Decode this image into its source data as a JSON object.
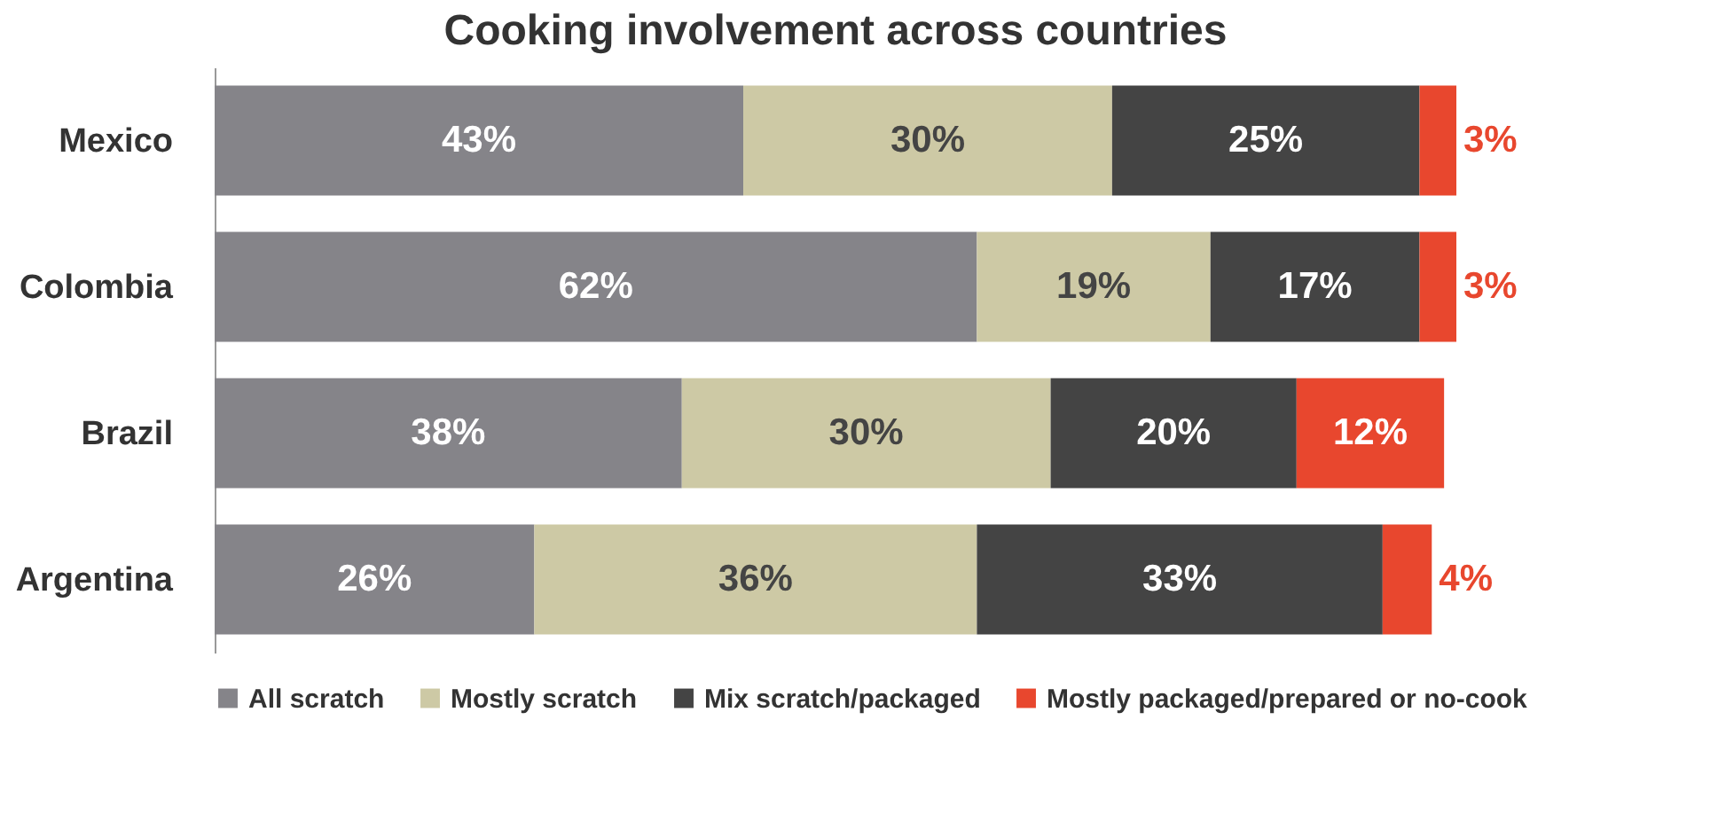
{
  "chart_data": {
    "type": "bar",
    "orientation": "horizontal",
    "stacked": true,
    "title": "Cooking involvement across countries",
    "categories": [
      "Mexico",
      "Colombia",
      "Brazil",
      "Argentina"
    ],
    "series": [
      {
        "name": "All scratch",
        "color": "#858489",
        "values": [
          43,
          62,
          38,
          26
        ],
        "value_labels": [
          "43%",
          "62%",
          "38%",
          "26%"
        ]
      },
      {
        "name": "Mostly scratch",
        "color": "#cdc9a5",
        "values": [
          30,
          19,
          30,
          36
        ],
        "value_labels": [
          "30%",
          "19%",
          "30%",
          "36%"
        ]
      },
      {
        "name": "Mix scratch/packaged",
        "color": "#444444",
        "values": [
          25,
          17,
          20,
          33
        ],
        "value_labels": [
          "25%",
          "17%",
          "20%",
          "33%"
        ]
      },
      {
        "name": "Mostly packaged/prepared or no-cook",
        "color": "#e8472e",
        "values": [
          3,
          3,
          12,
          4
        ],
        "value_labels": [
          "3%",
          "3%",
          "12%",
          "4%"
        ]
      }
    ],
    "legend": "bottom",
    "tick_labels": "y"
  }
}
